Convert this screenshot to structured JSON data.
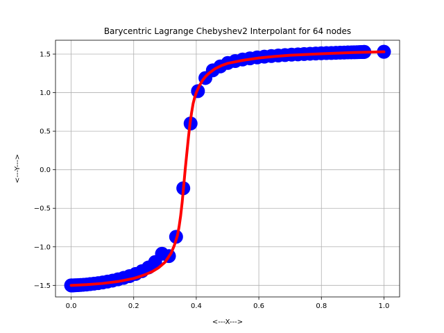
{
  "chart_data": {
    "type": "scatter",
    "title": "Barycentric Lagrange Chebyshev2 Interpolant for 64 nodes",
    "xlabel": "<---X--->",
    "ylabel": "<---Y--->",
    "xlim": [
      -0.05,
      1.05
    ],
    "ylim": [
      -1.65,
      1.68
    ],
    "xticks": [
      0.0,
      0.2,
      0.4,
      0.6,
      0.8,
      1.0
    ],
    "xtick_labels": [
      "0.0",
      "0.2",
      "0.4",
      "0.6",
      "0.8",
      "1.0"
    ],
    "yticks": [
      -1.5,
      -1.0,
      -0.5,
      0.0,
      0.5,
      1.0,
      1.5
    ],
    "ytick_labels": [
      "−1.5",
      "−1.0",
      "−0.5",
      "0.0",
      "0.5",
      "1.0",
      "1.5"
    ],
    "grid": true,
    "series": [
      {
        "kind": "markers",
        "color": "#0000ff",
        "x": [
          0.0,
          0.0006,
          0.0025,
          0.0056,
          0.0099,
          0.0154,
          0.0222,
          0.0301,
          0.0392,
          0.0494,
          0.0607,
          0.0731,
          0.0865,
          0.1009,
          0.1163,
          0.1326,
          0.1498,
          0.1678,
          0.1866,
          0.2061,
          0.2263,
          0.2471,
          0.2685,
          0.2904,
          0.3127,
          0.3355,
          0.3585,
          0.3819,
          0.4054,
          0.4292,
          0.453,
          0.4768,
          0.5007,
          0.5245,
          0.5482,
          0.5716,
          0.5948,
          0.6177,
          0.6401,
          0.6622,
          0.6837,
          0.7047,
          0.725,
          0.7448,
          0.7638,
          0.782,
          0.7994,
          0.816,
          0.8317,
          0.8464,
          0.8601,
          0.8728,
          0.8845,
          0.895,
          0.9045,
          0.9128,
          0.9199,
          0.9258,
          0.9305,
          0.934,
          0.9363,
          0.9374,
          0.9997,
          1.0
        ],
        "y": [
          -1.5,
          -1.5,
          -1.5,
          -1.5,
          -1.499,
          -1.498,
          -1.497,
          -1.495,
          -1.492,
          -1.489,
          -1.484,
          -1.478,
          -1.471,
          -1.462,
          -1.451,
          -1.438,
          -1.422,
          -1.403,
          -1.38,
          -1.352,
          -1.316,
          -1.268,
          -1.198,
          -1.09,
          -1.12,
          -0.87,
          -0.24,
          0.6,
          1.02,
          1.19,
          1.29,
          1.34,
          1.385,
          1.41,
          1.43,
          1.445,
          1.457,
          1.467,
          1.475,
          1.482,
          1.488,
          1.493,
          1.497,
          1.501,
          1.505,
          1.508,
          1.511,
          1.513,
          1.515,
          1.517,
          1.519,
          1.52,
          1.522,
          1.523,
          1.524,
          1.525,
          1.526,
          1.527,
          1.527,
          1.528,
          1.528,
          1.529,
          1.53,
          1.53
        ]
      },
      {
        "kind": "line",
        "color": "#ff0000",
        "x": [
          0.0,
          0.05,
          0.1,
          0.15,
          0.2,
          0.22,
          0.24,
          0.26,
          0.28,
          0.3,
          0.31,
          0.32,
          0.33,
          0.34,
          0.345,
          0.35,
          0.355,
          0.36,
          0.365,
          0.37,
          0.375,
          0.38,
          0.385,
          0.39,
          0.395,
          0.4,
          0.41,
          0.42,
          0.43,
          0.44,
          0.46,
          0.48,
          0.5,
          0.55,
          0.6,
          0.65,
          0.7,
          0.8,
          0.9,
          1.0
        ],
        "y": [
          -1.5,
          -1.49,
          -1.475,
          -1.45,
          -1.41,
          -1.385,
          -1.355,
          -1.32,
          -1.27,
          -1.2,
          -1.14,
          -1.08,
          -0.98,
          -0.85,
          -0.74,
          -0.6,
          -0.42,
          -0.2,
          0.02,
          0.22,
          0.42,
          0.6,
          0.74,
          0.86,
          0.94,
          1.0,
          1.09,
          1.16,
          1.21,
          1.25,
          1.31,
          1.35,
          1.38,
          1.42,
          1.45,
          1.47,
          1.485,
          1.505,
          1.52,
          1.53
        ]
      }
    ]
  }
}
